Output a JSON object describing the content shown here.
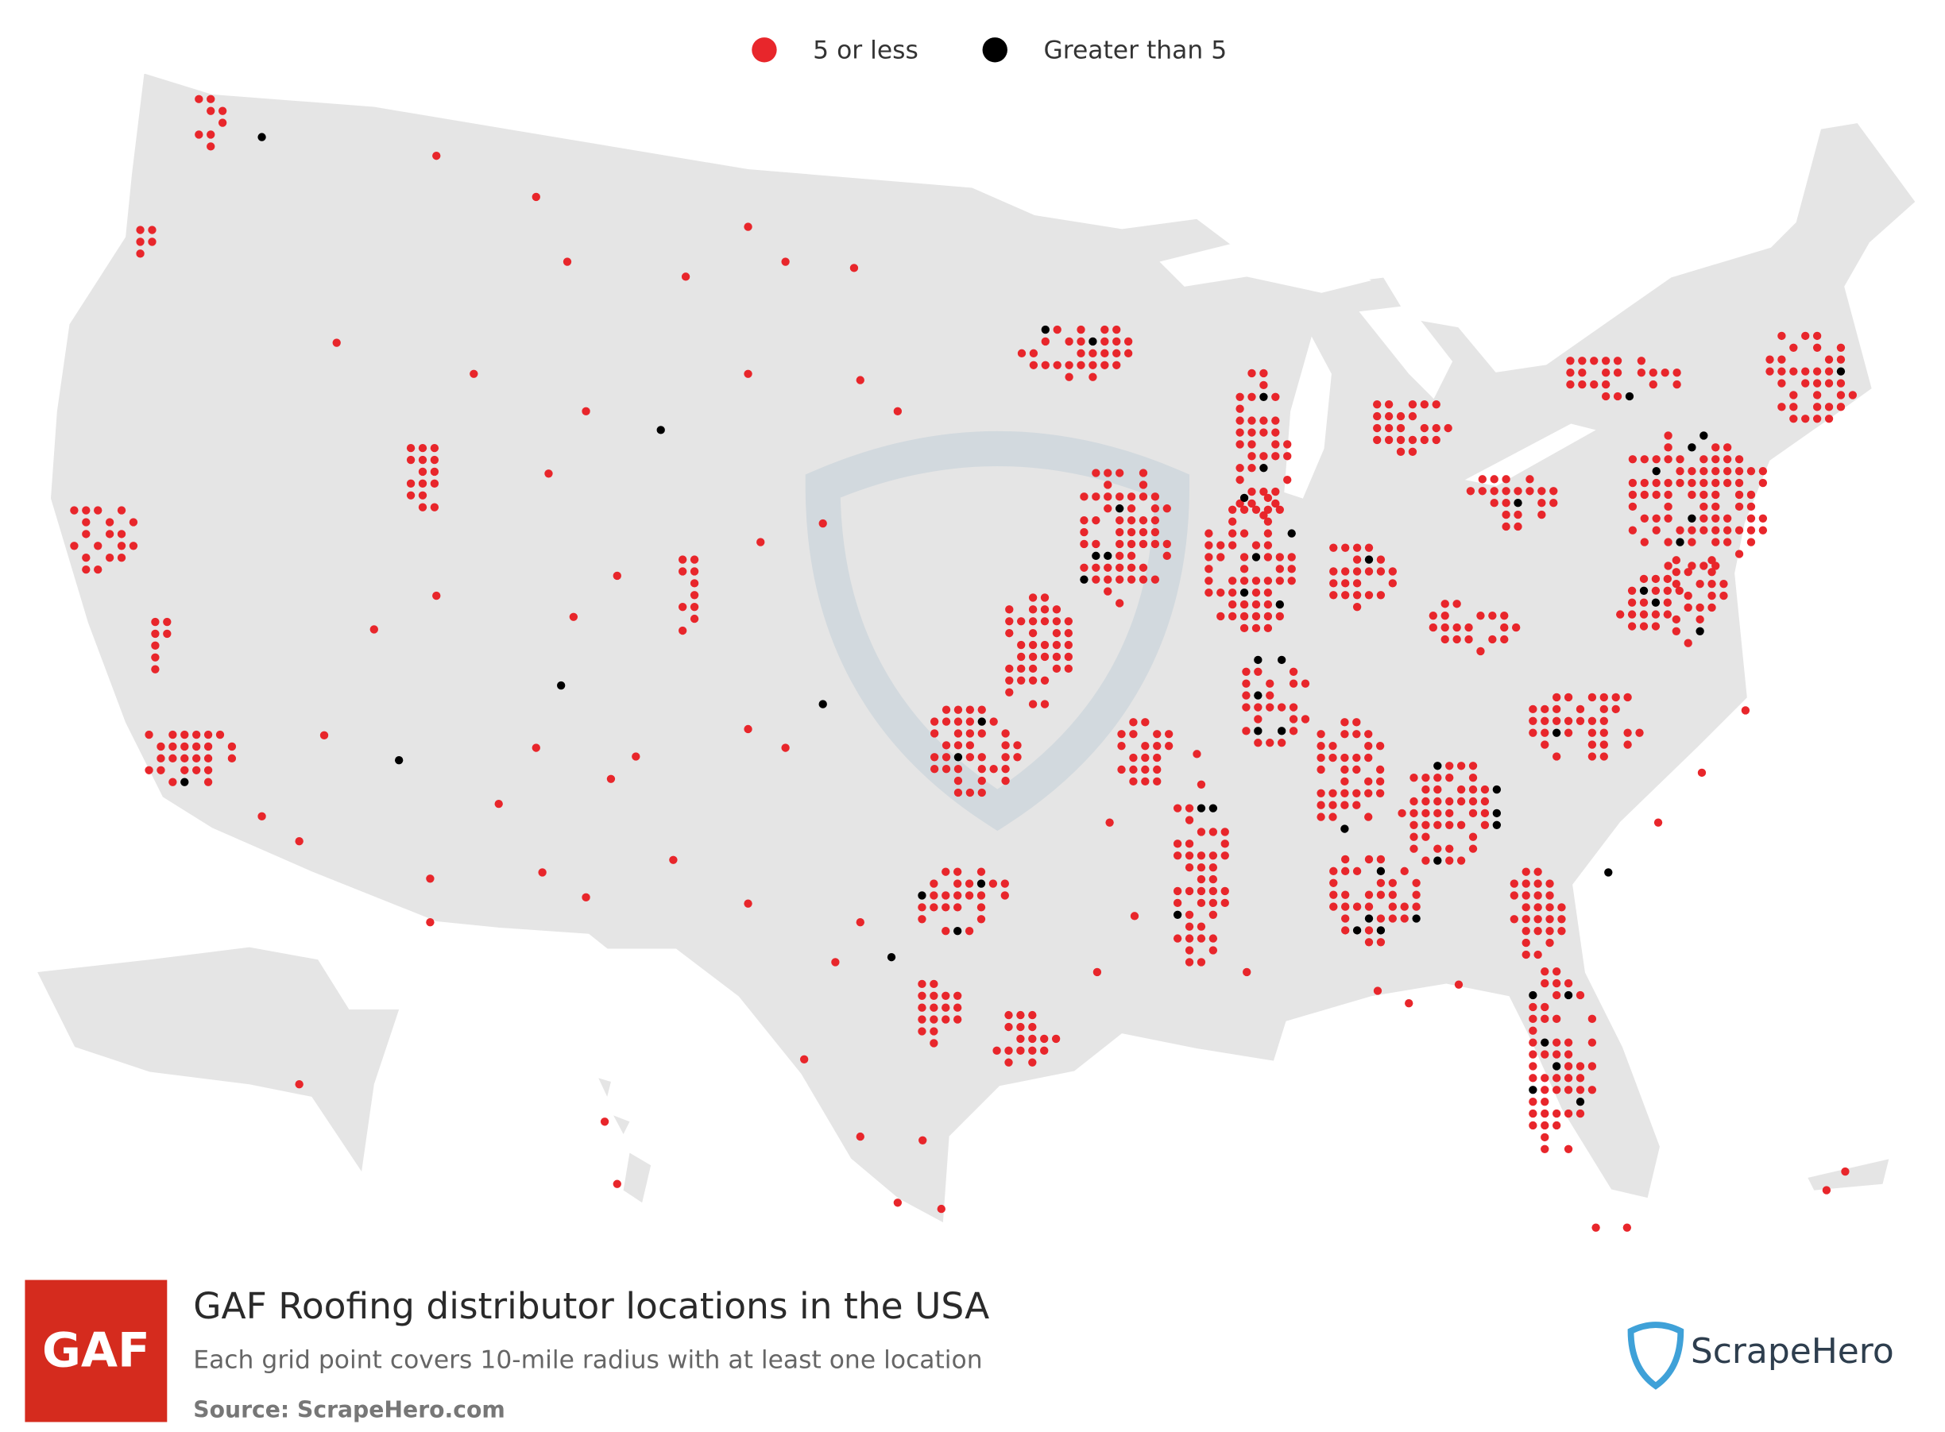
{
  "legend": {
    "items": [
      {
        "label": "5 or less",
        "color": "#e8262b"
      },
      {
        "label": "Greater than 5",
        "color": "#000000"
      }
    ]
  },
  "footer": {
    "logo": "GAF",
    "title": "GAF Roofing distributor locations in the USA",
    "subtitle": "Each grid point covers 10-mile radius with at least one location",
    "source": "Source: ScrapeHero.com",
    "brand": "ScrapeHero"
  }
}
